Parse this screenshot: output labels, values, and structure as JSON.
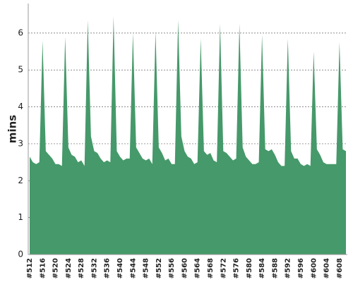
{
  "chart_data": {
    "type": "area",
    "y_label": "mins",
    "color": "#46996a",
    "categories": [
      "#512",
      null,
      null,
      null,
      "#516",
      null,
      null,
      null,
      "#520",
      null,
      null,
      null,
      "#524",
      null,
      null,
      null,
      "#528",
      null,
      null,
      null,
      "#532",
      null,
      null,
      null,
      "#536",
      null,
      null,
      null,
      "#540",
      null,
      null,
      null,
      "#544",
      null,
      null,
      null,
      "#548",
      null,
      null,
      null,
      "#552",
      null,
      null,
      null,
      "#556",
      null,
      null,
      null,
      "#560",
      null,
      null,
      null,
      "#564",
      null,
      null,
      null,
      "#568",
      null,
      null,
      null,
      "#572",
      null,
      null,
      null,
      "#576",
      null,
      null,
      null,
      "#580",
      null,
      null,
      null,
      "#584",
      null,
      null,
      null,
      "#588",
      null,
      null,
      null,
      "#592",
      null,
      null,
      null,
      "#596",
      null,
      null,
      null,
      "#600",
      null,
      null,
      null,
      "#604",
      null,
      null,
      null,
      "#608",
      null,
      null
    ],
    "values": [
      2.65,
      2.5,
      2.45,
      2.5,
      5.8,
      2.8,
      2.7,
      2.6,
      2.45,
      2.45,
      2.4,
      5.9,
      2.9,
      2.7,
      2.65,
      2.5,
      2.55,
      2.4,
      6.35,
      3.2,
      2.8,
      2.75,
      2.6,
      2.5,
      2.55,
      2.5,
      6.45,
      2.8,
      2.65,
      2.55,
      2.6,
      2.6,
      6.0,
      2.9,
      2.75,
      2.6,
      2.55,
      2.6,
      2.45,
      6.05,
      2.9,
      2.75,
      2.55,
      2.6,
      2.45,
      2.45,
      6.35,
      3.2,
      2.8,
      2.65,
      2.6,
      2.45,
      2.5,
      5.85,
      2.8,
      2.7,
      2.75,
      2.55,
      2.5,
      6.25,
      2.8,
      2.75,
      2.65,
      2.55,
      2.6,
      6.25,
      2.9,
      2.65,
      2.55,
      2.45,
      2.45,
      2.5,
      5.95,
      2.85,
      2.8,
      2.85,
      2.7,
      2.5,
      2.4,
      2.4,
      5.85,
      2.8,
      2.6,
      2.6,
      2.45,
      2.4,
      2.45,
      2.4,
      5.5,
      2.85,
      2.7,
      2.5,
      2.45,
      2.45,
      2.45,
      2.45,
      5.75,
      2.85,
      2.8
    ],
    "ylim": [
      0,
      6.8
    ],
    "yticks": [
      0,
      1,
      2,
      3,
      4,
      5,
      6
    ],
    "grid": true
  }
}
